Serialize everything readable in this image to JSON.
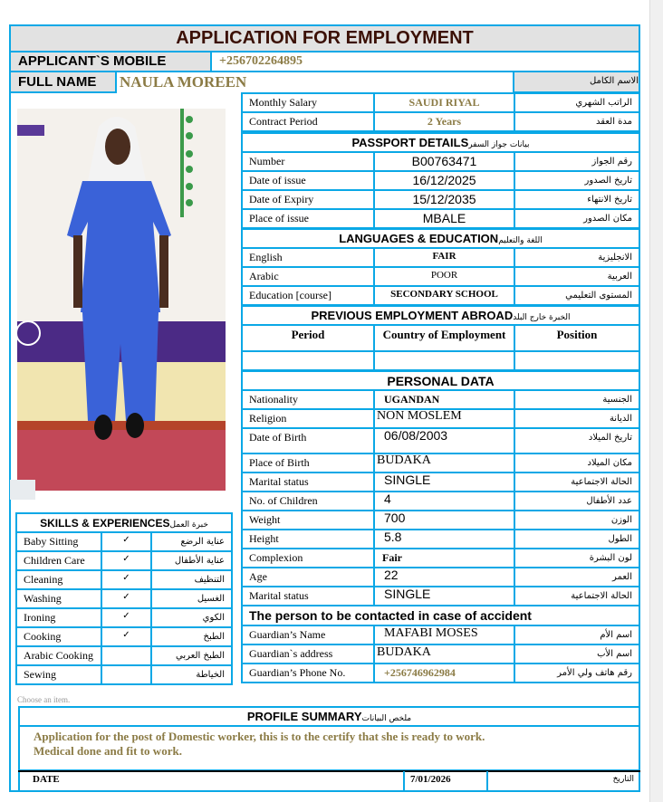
{
  "title": "APPLICATION FOR EMPLOYMENT",
  "mobile": {
    "label": "APPLICANT`S MOBILE",
    "value": "+256702264895"
  },
  "full_name": {
    "label": "FULL NAME",
    "value": "NAULA  MOREEN",
    "ar": "الاسم الكامل"
  },
  "job": [
    {
      "label": "Monthly Salary",
      "value": "SAUDI RIYAL",
      "ar": "الراتب الشهري"
    },
    {
      "label": "Contract Period",
      "value": "2 Years",
      "ar": "مدة العقد"
    }
  ],
  "passport": {
    "header": "PASSPORT  DETAILS",
    "header_ar": "بيانات جواز السفر",
    "rows": [
      {
        "label": "Number",
        "value": "B00763471",
        "ar": "رقم الجواز"
      },
      {
        "label": "Date of issue",
        "value": "16/12/2025",
        "ar": "تاريخ الصدور"
      },
      {
        "label": "Date of Expiry",
        "value": "15/12/2035",
        "ar": "تاريخ الانتهاء"
      },
      {
        "label": "Place of issue",
        "value": "MBALE",
        "ar": "مكان الصدور"
      }
    ]
  },
  "languages": {
    "header": "LANGUAGES  & EDUCATION",
    "header_ar": "اللغة والتعليم",
    "rows": [
      {
        "label": "English",
        "value": "FAIR",
        "ar": "الانجليزية"
      },
      {
        "label": "Arabic",
        "value": "POOR",
        "ar": "العربية"
      },
      {
        "label": "Education [course]",
        "value": "SECONDARY SCHOOL",
        "ar": "المستوى التعليمي"
      }
    ]
  },
  "previous": {
    "header": "PREVIOUS EMPLOYMENT ABROAD",
    "header_ar": "الخبرة خارج البلد",
    "columns": [
      "Period",
      "Country of Employment",
      "Position"
    ],
    "rows": [
      [
        "",
        "",
        ""
      ]
    ]
  },
  "personal": {
    "header": "PERSONAL DATA",
    "rows": [
      {
        "label": "Nationality",
        "value": "UGANDAN",
        "ar": "الجنسية"
      },
      {
        "label": "Religion",
        "value": "NON MOSLEM",
        "ar": "الديانة"
      },
      {
        "label": "Date of Birth",
        "value": "06/08/2003",
        "ar": "تاريخ الميلاد"
      },
      {
        "label": "Place of Birth",
        "value": "BUDAKA",
        "ar": "مكان الميلاد"
      },
      {
        "label": "Marital status",
        "value": "SINGLE",
        "ar": "الحالة الاجتماعية"
      },
      {
        "label": "No. of Children",
        "value": "4",
        "ar": "عدد الأطفال"
      },
      {
        "label": "Weight",
        "value": "700",
        "ar": "الوزن"
      },
      {
        "label": "Height",
        "value": "5.8",
        "ar": "الطول"
      },
      {
        "label": "Complexion",
        "value": "Fair",
        "ar": "لون البشرة"
      },
      {
        "label": "Age",
        "value": "22",
        "ar": "العمر"
      },
      {
        "label": "Marital status",
        "value": "SINGLE",
        "ar": "الحالة الاجتماعية"
      }
    ]
  },
  "contact": {
    "header": "The person to be contacted in case of accident",
    "rows": [
      {
        "label": "Guardian’s Name",
        "value": "MAFABI MOSES",
        "ar": "اسم الأم"
      },
      {
        "label": "Guardian`s address",
        "value": "BUDAKA",
        "ar": "اسم الأب"
      },
      {
        "label": "Guardian’s Phone No.",
        "value": "+256746962984",
        "ar": "رقم هاتف ولي الأمر"
      }
    ]
  },
  "skills": {
    "header": "SKILLS & EXPERIENCES",
    "header_ar": "خبرة العمل",
    "rows": [
      {
        "label": "Baby Sitting",
        "check": "✓",
        "ar": "عناية الرضع"
      },
      {
        "label": "Children Care",
        "check": "✓",
        "ar": "عناية الأطفال"
      },
      {
        "label": "Cleaning",
        "check": "✓",
        "ar": "التنظيف"
      },
      {
        "label": "Washing",
        "check": "✓",
        "ar": "الغسيل"
      },
      {
        "label": "Ironing",
        "check": "✓",
        "ar": "الكوي"
      },
      {
        "label": "Cooking",
        "check": "✓",
        "ar": "الطبخ"
      },
      {
        "label": "Arabic Cooking",
        "check": "",
        "ar": "الطبخ العربي"
      },
      {
        "label": "Sewing",
        "check": "",
        "ar": "الخياطة"
      }
    ]
  },
  "choose_item": "Choose an item.",
  "profile": {
    "header": "PROFILE SUMMARY",
    "header_ar": "ملخص البيانات",
    "text_line1": "Application for the post of Domestic worker, this is to the certify that she is ready to work.",
    "text_line2": "Medical done and fit to work."
  },
  "date": {
    "label": "DATE",
    "value": "7/01/2026",
    "ar": "التاريخ"
  },
  "colors": {
    "border": "#0aa8e6",
    "title": "#3b1005",
    "gold": "#8b7b45",
    "header_bg": "#e2e2e2"
  }
}
